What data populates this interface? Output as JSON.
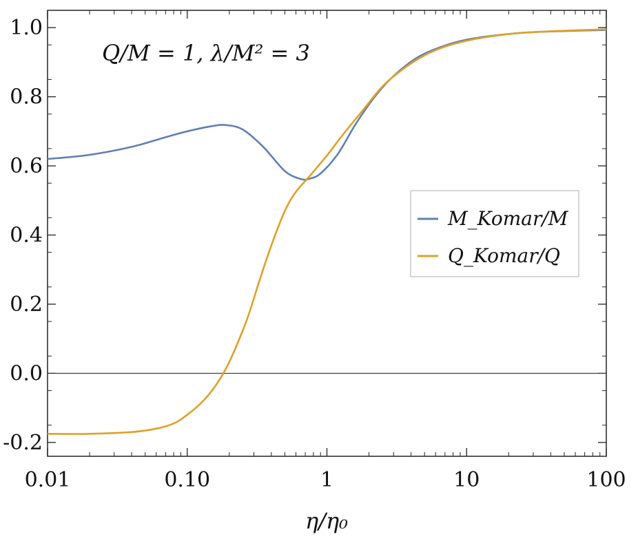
{
  "chart_data": {
    "type": "line",
    "xscale": "log",
    "xlim": [
      0.01,
      100
    ],
    "ylim": [
      -0.24,
      1.05
    ],
    "xticks": [
      {
        "value": 0.01,
        "label": "0.01"
      },
      {
        "value": 0.1,
        "label": "0.10"
      },
      {
        "value": 1,
        "label": "1"
      },
      {
        "value": 10,
        "label": "10"
      },
      {
        "value": 100,
        "label": "100"
      }
    ],
    "yticks": [
      {
        "value": -0.2,
        "label": "-0.2"
      },
      {
        "value": 0.0,
        "label": "0.0"
      },
      {
        "value": 0.2,
        "label": "0.2"
      },
      {
        "value": 0.4,
        "label": "0.4"
      },
      {
        "value": 0.6,
        "label": "0.6"
      },
      {
        "value": 0.8,
        "label": "0.8"
      },
      {
        "value": 1.0,
        "label": "1.0"
      }
    ],
    "xlabel": "η/η₀",
    "ylabel": "",
    "annotation": "Q/M = 1, λ/M² = 3",
    "grid": false,
    "legend_position": "center-right",
    "reference_line_y": 0,
    "series": [
      {
        "name": "M_Komar/M",
        "color": "#5f7fb4",
        "x": [
          0.01,
          0.02,
          0.04,
          0.07,
          0.1,
          0.15,
          0.19,
          0.25,
          0.35,
          0.5,
          0.65,
          0.75,
          0.9,
          1.2,
          1.6,
          2.2,
          3,
          4.5,
          7,
          10,
          15,
          25,
          50,
          100
        ],
        "y": [
          0.62,
          0.632,
          0.655,
          0.683,
          0.7,
          0.715,
          0.718,
          0.705,
          0.655,
          0.585,
          0.562,
          0.563,
          0.578,
          0.635,
          0.72,
          0.8,
          0.86,
          0.915,
          0.948,
          0.965,
          0.976,
          0.985,
          0.99,
          0.993
        ]
      },
      {
        "name": "Q_Komar/Q",
        "color": "#e0a028",
        "x": [
          0.01,
          0.02,
          0.04,
          0.06,
          0.08,
          0.1,
          0.13,
          0.16,
          0.19,
          0.22,
          0.27,
          0.33,
          0.4,
          0.5,
          0.6,
          0.75,
          1.0,
          1.3,
          1.8,
          2.5,
          3.5,
          5,
          7,
          10,
          15,
          25,
          50,
          100
        ],
        "y": [
          -0.175,
          -0.175,
          -0.17,
          -0.16,
          -0.145,
          -0.12,
          -0.08,
          -0.035,
          0.015,
          0.07,
          0.16,
          0.27,
          0.37,
          0.47,
          0.525,
          0.57,
          0.63,
          0.69,
          0.76,
          0.83,
          0.88,
          0.92,
          0.945,
          0.962,
          0.975,
          0.985,
          0.991,
          0.995
        ]
      }
    ]
  },
  "legend": {
    "entries": [
      "M_Komar/M",
      "Q_Komar/Q"
    ]
  }
}
